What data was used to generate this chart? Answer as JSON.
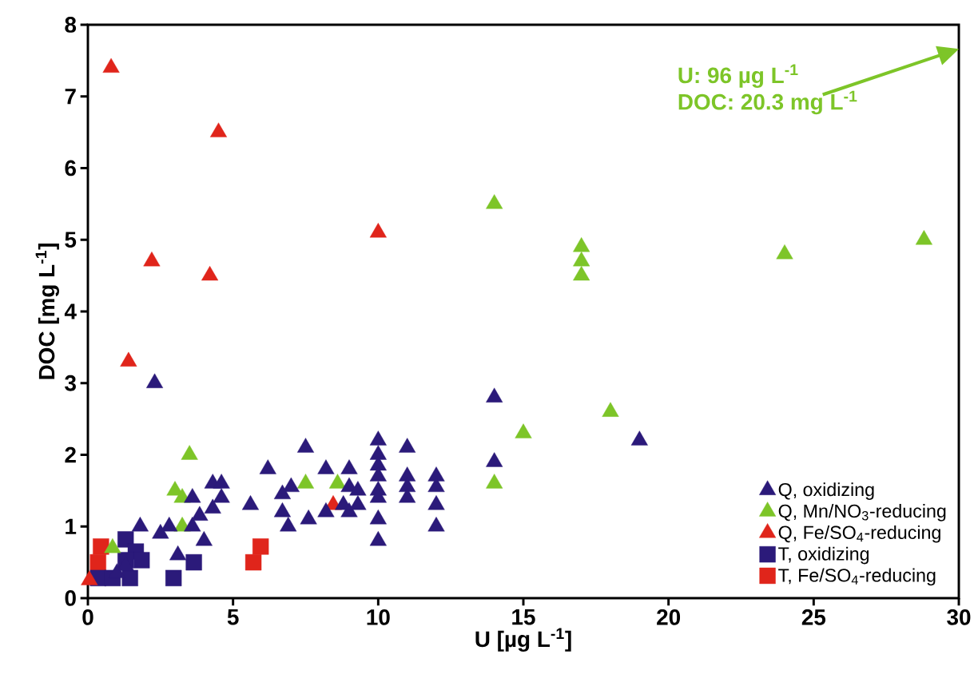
{
  "chart_data": {
    "type": "scatter",
    "xlabel": "U [µg L$^{-1}$]",
    "ylabel": "DOC [mg L$^{-1}$]",
    "xlim": [
      0,
      30
    ],
    "ylim": [
      0,
      8
    ],
    "xticks": [
      0,
      5,
      10,
      15,
      20,
      25,
      30
    ],
    "yticks": [
      0,
      1,
      2,
      3,
      4,
      5,
      6,
      7,
      8
    ],
    "grid": false,
    "legend": "bottom right",
    "annotations": [
      "U: 96 µg L$^{-1}$",
      "DOC: 20.3 mg L$^{-1}$"
    ],
    "series": [
      {
        "name": "Q, oxidizing",
        "color": "#2b1a7a",
        "marker": "triangle",
        "x": [
          2.3,
          19,
          14,
          14,
          10,
          10,
          10,
          10,
          10,
          10,
          10,
          10,
          11,
          11,
          11,
          11,
          12,
          12,
          12,
          12,
          9,
          9,
          9,
          9.3,
          9.3,
          8.8,
          8.2,
          8.2,
          7.5,
          7.0,
          6.7,
          6.7,
          6.9,
          7.6,
          6.2,
          5.6,
          4.3,
          4.6,
          4.6,
          4.3,
          3.6,
          3.6,
          3.85,
          4.0,
          2.8,
          2.5,
          3.1,
          1.8,
          1.3,
          1.0
        ],
        "values": [
          3.0,
          2.2,
          2.8,
          1.9,
          2.2,
          2.0,
          1.85,
          1.7,
          1.5,
          1.4,
          1.1,
          0.8,
          2.1,
          1.7,
          1.55,
          1.4,
          1.7,
          1.55,
          1.3,
          1.0,
          1.8,
          1.55,
          1.2,
          1.5,
          1.3,
          1.3,
          1.8,
          1.2,
          2.1,
          1.55,
          1.45,
          1.2,
          1.0,
          1.1,
          1.8,
          1.3,
          1.6,
          1.6,
          1.4,
          1.25,
          1.4,
          1.0,
          1.15,
          0.8,
          1.0,
          0.9,
          0.6,
          1.0,
          0.45,
          0.35
        ]
      },
      {
        "name": "Q, Mn/NO$_{3}$-reducing",
        "color": "#7dc528",
        "marker": "triangle",
        "x": [
          14,
          17,
          17,
          17,
          24,
          28.8,
          18,
          15,
          14,
          3.5,
          3.0,
          3.25,
          3.25,
          0.85,
          7.5,
          8.6
        ],
        "values": [
          5.5,
          4.9,
          4.7,
          4.5,
          4.8,
          5.0,
          2.6,
          2.3,
          1.6,
          2.0,
          1.5,
          1.4,
          1.0,
          0.7,
          1.6,
          1.6
        ]
      },
      {
        "name": "Q, Fe/SO$_{4}$-reducing",
        "color": "#e0251b",
        "marker": "triangle",
        "x": [
          0.8,
          4.5,
          2.2,
          4.2,
          10,
          1.4,
          0.05,
          8.45
        ],
        "values": [
          7.4,
          6.5,
          4.7,
          4.5,
          5.1,
          3.3,
          0.25,
          1.3
        ]
      },
      {
        "name": "T, oxidizing",
        "color": "#2b1a7a",
        "marker": "square",
        "x": [
          0.35,
          0.85,
          1.45,
          2.95,
          3.65,
          1.3,
          1.65,
          1.85,
          1.3
        ],
        "values": [
          0.28,
          0.28,
          0.28,
          0.28,
          0.5,
          0.82,
          0.65,
          0.53,
          0.53
        ]
      },
      {
        "name": "T, Fe/SO$_{4}$-reducing",
        "color": "#e0251b",
        "marker": "square",
        "x": [
          0.45,
          0.35,
          5.7,
          5.95
        ],
        "values": [
          0.72,
          0.5,
          0.5,
          0.72
        ]
      }
    ]
  }
}
